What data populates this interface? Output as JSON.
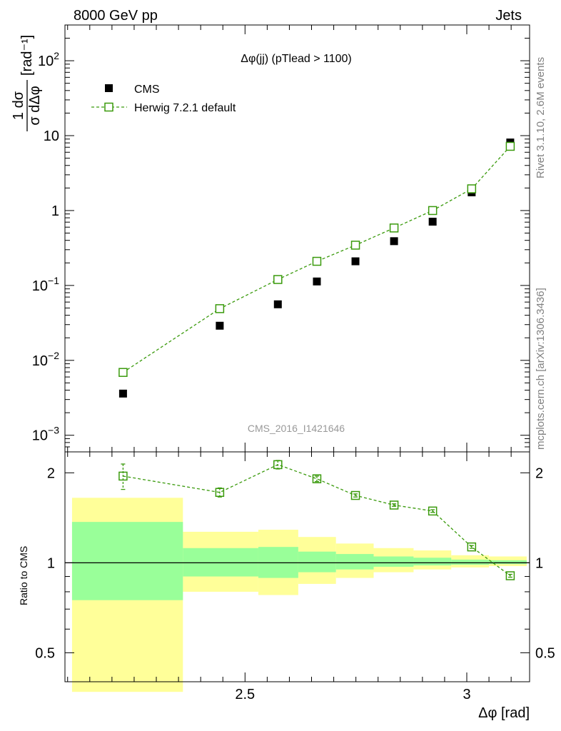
{
  "header": {
    "left": "8000 GeV pp",
    "right": "Jets"
  },
  "side_text": {
    "top": "Rivet 3.1.10,  2.6M events",
    "bottom": "mcplots.cern.ch [arXiv:1306.3436]"
  },
  "chart_data": [
    {
      "type": "scatter",
      "title": "Δφ(jj) (pTlead >  1100)",
      "analysis_label": "CMS_2016_I1421646",
      "xlabel": "Δφ [rad]",
      "ylabel_parts": {
        "num": "1 dσ",
        "den": "σ dΔφ",
        "unit": "[rad⁻¹]"
      },
      "yscale": "log",
      "xlim": [
        2.094,
        3.1416
      ],
      "ylim": [
        0.0006,
        300
      ],
      "legend_position": "top-left",
      "y_ticks": [
        {
          "v": 0.001,
          "base": "10",
          "exp": "−3"
        },
        {
          "v": 0.01,
          "base": "10",
          "exp": "−2"
        },
        {
          "v": 0.1,
          "base": "10",
          "exp": "−1"
        },
        {
          "v": 1,
          "base": "1",
          "exp": ""
        },
        {
          "v": 10,
          "base": "10",
          "exp": ""
        },
        {
          "v": 100,
          "base": "10",
          "exp": "2"
        }
      ],
      "bins": [
        2.094,
        2.356,
        2.443,
        2.531,
        2.618,
        2.705,
        2.793,
        2.88,
        2.967,
        3.054,
        3.1416
      ],
      "series": [
        {
          "name": "CMS",
          "color": "#000000",
          "marker": "filled-square",
          "x": [
            2.225,
            2.443,
            2.574,
            2.662,
            2.749,
            2.836,
            2.923,
            3.011,
            3.098
          ],
          "y": [
            0.0036,
            0.029,
            0.056,
            0.113,
            0.21,
            0.39,
            0.71,
            1.75,
            8.1
          ]
        },
        {
          "name": "Herwig 7.2.1 default",
          "color": "#3a9a0c",
          "marker": "open-square",
          "line": "dashed",
          "x": [
            2.225,
            2.443,
            2.574,
            2.662,
            2.749,
            2.836,
            2.923,
            3.011,
            3.098
          ],
          "y": [
            0.0069,
            0.049,
            0.12,
            0.21,
            0.345,
            0.585,
            1.0,
            1.95,
            7.2
          ]
        }
      ]
    },
    {
      "type": "scatter",
      "ylabel": "Ratio to CMS",
      "yscale": "log",
      "ylim": [
        0.4,
        2.35
      ],
      "x_ticks": [
        {
          "v": 2.5,
          "label": "2.5"
        },
        {
          "v": 3.0,
          "label": "3"
        }
      ],
      "y_ticks": [
        {
          "v": 0.5,
          "label": "0.5"
        },
        {
          "v": 1,
          "label": "1"
        },
        {
          "v": 2,
          "label": "2"
        }
      ],
      "bands": {
        "stat_color": "#99ff99",
        "total_color": "#ffff99",
        "bins": [
          {
            "x0": 2.11,
            "x1": 2.36,
            "stat": [
              0.75,
              1.37
            ],
            "total": [
              0.37,
              1.65
            ]
          },
          {
            "x0": 2.36,
            "x1": 2.53,
            "stat": [
              0.9,
              1.12
            ],
            "total": [
              0.8,
              1.27
            ]
          },
          {
            "x0": 2.53,
            "x1": 2.62,
            "stat": [
              0.89,
              1.13
            ],
            "total": [
              0.78,
              1.29
            ]
          },
          {
            "x0": 2.62,
            "x1": 2.705,
            "stat": [
              0.93,
              1.09
            ],
            "total": [
              0.85,
              1.22
            ]
          },
          {
            "x0": 2.705,
            "x1": 2.79,
            "stat": [
              0.95,
              1.07
            ],
            "total": [
              0.89,
              1.16
            ]
          },
          {
            "x0": 2.79,
            "x1": 2.88,
            "stat": [
              0.97,
              1.05
            ],
            "total": [
              0.93,
              1.12
            ]
          },
          {
            "x0": 2.88,
            "x1": 2.965,
            "stat": [
              0.98,
              1.04
            ],
            "total": [
              0.95,
              1.1
            ]
          },
          {
            "x0": 2.965,
            "x1": 3.05,
            "stat": [
              0.985,
              1.025
            ],
            "total": [
              0.965,
              1.06
            ]
          },
          {
            "x0": 3.05,
            "x1": 3.135,
            "stat": [
              0.99,
              1.02
            ],
            "total": [
              0.975,
              1.05
            ]
          }
        ]
      },
      "series": [
        {
          "name": "Herwig 7.2.1 default",
          "color": "#3a9a0c",
          "x": [
            2.225,
            2.443,
            2.574,
            2.662,
            2.749,
            2.836,
            2.923,
            3.011,
            3.098
          ],
          "y": [
            1.95,
            1.72,
            2.13,
            1.91,
            1.68,
            1.56,
            1.49,
            1.13,
            0.905
          ],
          "err": [
            0.19,
            0.06,
            0.07,
            0.04,
            0.02,
            0.015,
            0.015,
            0.012,
            0.01
          ]
        }
      ]
    }
  ]
}
